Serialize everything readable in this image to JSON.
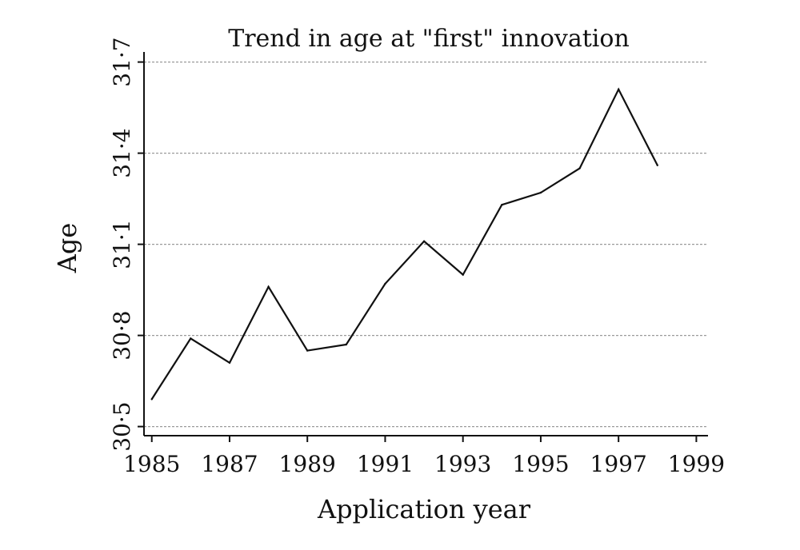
{
  "chart_data": {
    "type": "line",
    "title": "Trend in age at \"first\" innovation",
    "xlabel": "Application year",
    "ylabel": "Age",
    "xlim": [
      1984.8,
      1999.3
    ],
    "ylim": [
      30.47,
      31.72
    ],
    "xticks": [
      1985,
      1987,
      1989,
      1991,
      1993,
      1995,
      1997,
      1999
    ],
    "xtick_labels": [
      "1985",
      "1987",
      "1989",
      "1991",
      "1993",
      "1995",
      "1997",
      "1999"
    ],
    "yticks": [
      30.5,
      30.8,
      31.1,
      31.4,
      31.7
    ],
    "ytick_labels": [
      "30·5",
      "30·8",
      "31·1",
      "31·4",
      "31·7"
    ],
    "grid": "horizontal-dotted",
    "series": [
      {
        "x": [
          1985,
          1986,
          1987,
          1988,
          1989,
          1990,
          1991,
          1992,
          1993,
          1994,
          1995,
          1996,
          1997,
          1998
        ],
        "y": [
          30.59,
          30.79,
          30.71,
          30.96,
          30.75,
          30.77,
          30.97,
          31.11,
          31.0,
          31.23,
          31.27,
          31.35,
          31.61,
          31.36
        ]
      }
    ]
  }
}
